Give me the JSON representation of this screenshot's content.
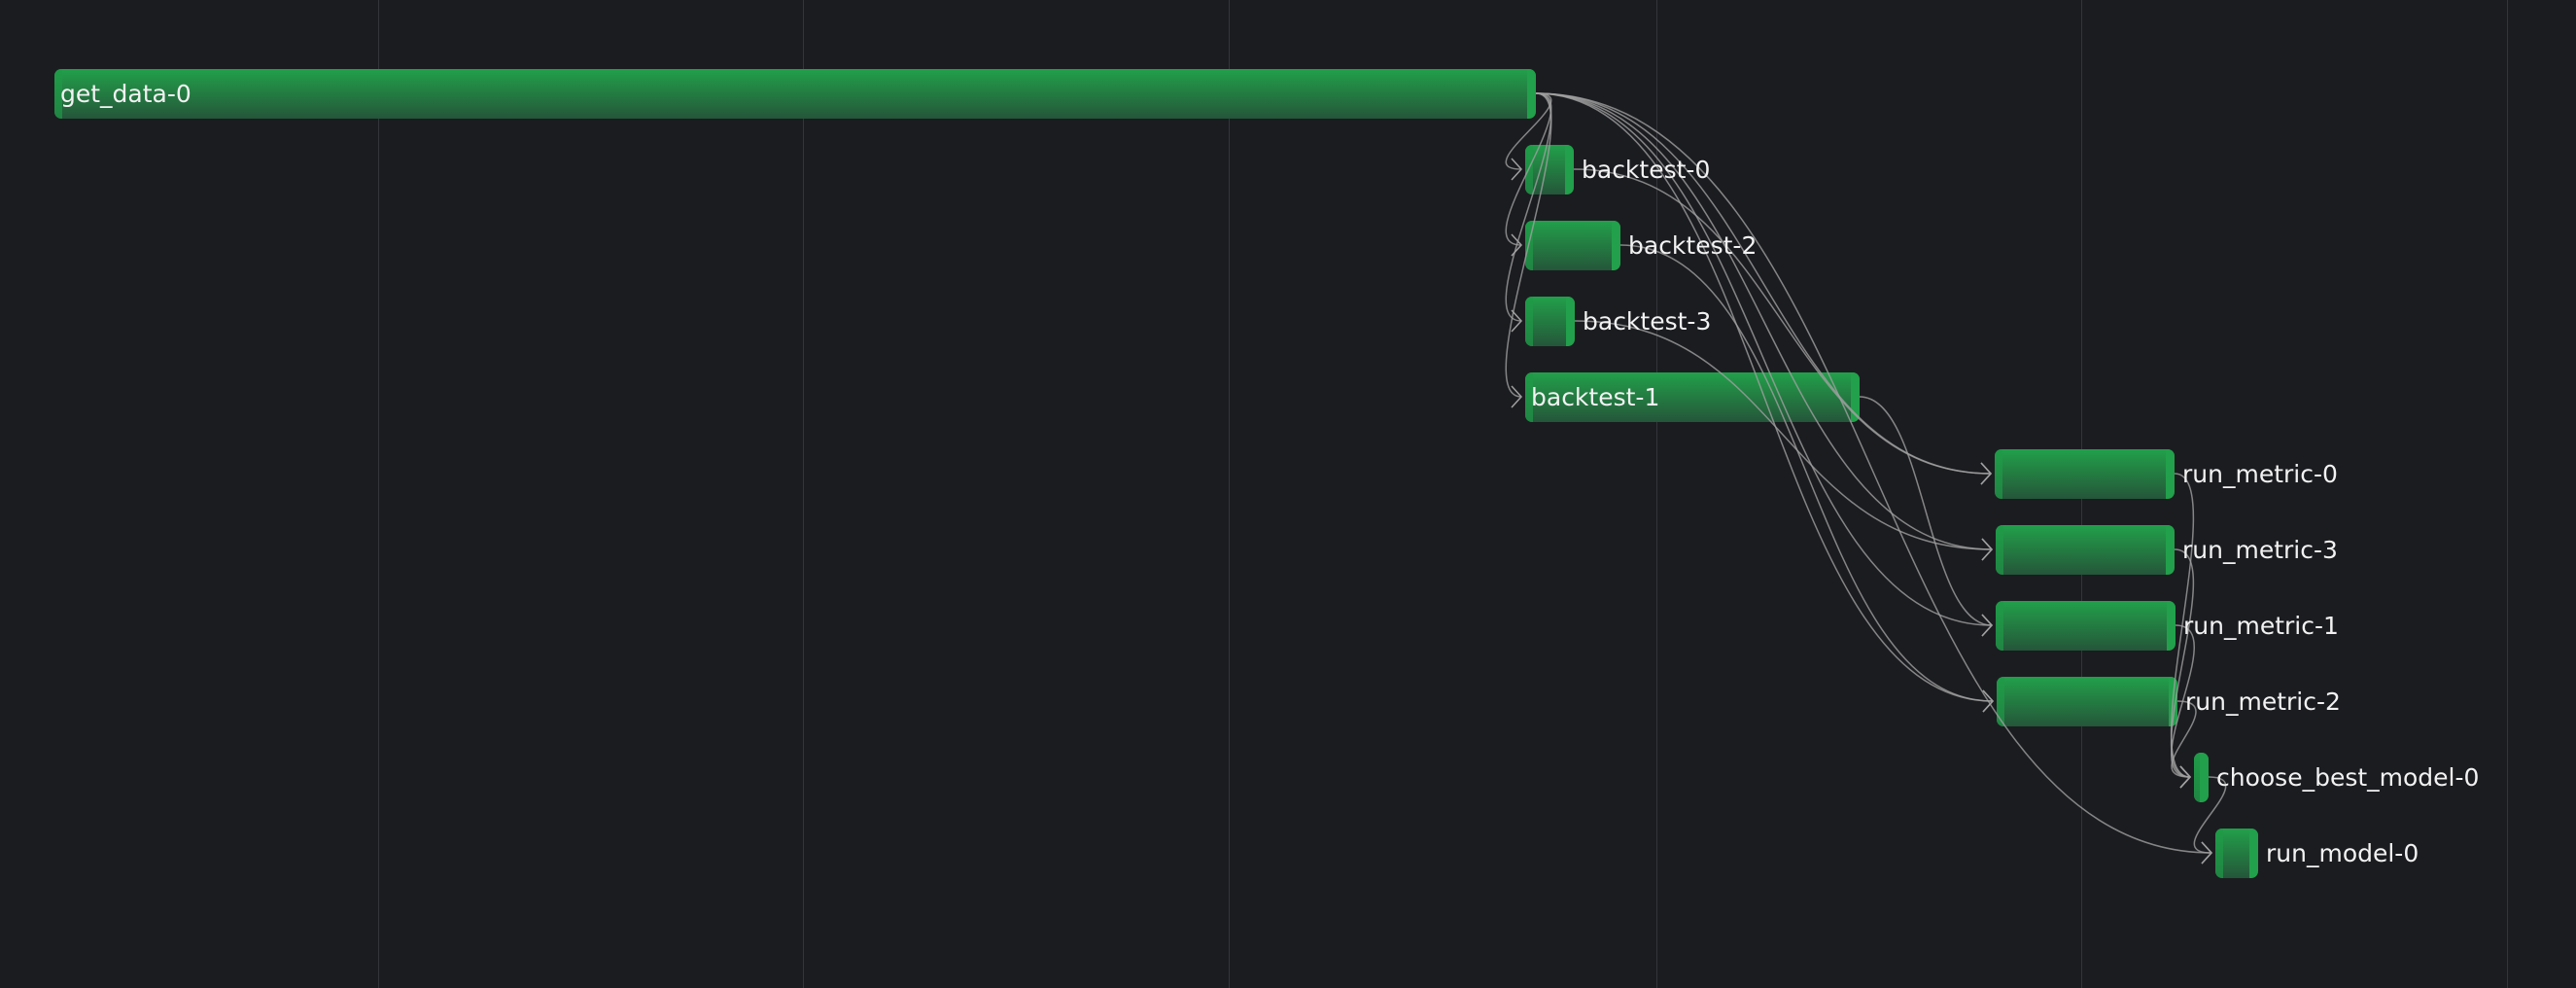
{
  "colors": {
    "background": "#1b1c20",
    "bar": "#22a04b",
    "bar_dark": "#24563a",
    "edge": "#a0a0a0",
    "text": "#f2f2f2"
  },
  "tasks": [
    {
      "id": "get_data-0",
      "label": "get_data-0"
    },
    {
      "id": "backtest-0",
      "label": "backtest-0"
    },
    {
      "id": "backtest-2",
      "label": "backtest-2"
    },
    {
      "id": "backtest-3",
      "label": "backtest-3"
    },
    {
      "id": "backtest-1",
      "label": "backtest-1"
    },
    {
      "id": "run_metric-0",
      "label": "run_metric-0"
    },
    {
      "id": "run_metric-3",
      "label": "run_metric-3"
    },
    {
      "id": "run_metric-1",
      "label": "run_metric-1"
    },
    {
      "id": "run_metric-2",
      "label": "run_metric-2"
    },
    {
      "id": "choose_best_model-0",
      "label": "choose_best_model-0"
    },
    {
      "id": "run_model-0",
      "label": "run_model-0"
    }
  ],
  "dependencies": [
    [
      "get_data-0",
      "backtest-0"
    ],
    [
      "get_data-0",
      "backtest-2"
    ],
    [
      "get_data-0",
      "backtest-3"
    ],
    [
      "get_data-0",
      "backtest-1"
    ],
    [
      "get_data-0",
      "run_metric-0"
    ],
    [
      "get_data-0",
      "run_metric-3"
    ],
    [
      "get_data-0",
      "run_metric-1"
    ],
    [
      "get_data-0",
      "run_metric-2"
    ],
    [
      "backtest-0",
      "run_metric-0"
    ],
    [
      "backtest-2",
      "run_metric-2"
    ],
    [
      "backtest-3",
      "run_metric-3"
    ],
    [
      "backtest-1",
      "run_metric-1"
    ],
    [
      "run_metric-0",
      "choose_best_model-0"
    ],
    [
      "run_metric-3",
      "choose_best_model-0"
    ],
    [
      "run_metric-1",
      "choose_best_model-0"
    ],
    [
      "run_metric-2",
      "choose_best_model-0"
    ],
    [
      "get_data-0",
      "run_model-0"
    ],
    [
      "choose_best_model-0",
      "run_model-0"
    ]
  ]
}
